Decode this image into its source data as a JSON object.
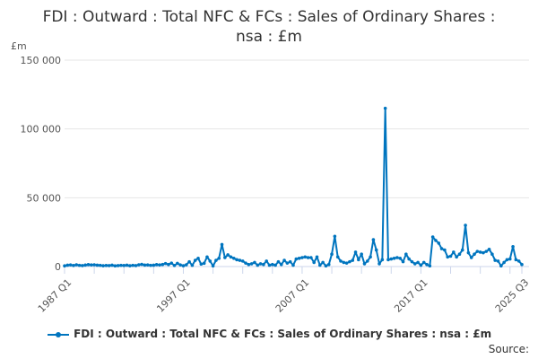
{
  "chart_data": {
    "type": "line",
    "title": "FDI : Outward : Total NFC & FCs : Sales of Ordinary Shares : nsa : £m",
    "ylabel": "£m",
    "xlabel": "",
    "ylim": [
      0,
      150000
    ],
    "yticks": [
      0,
      50000,
      100000,
      150000
    ],
    "ytick_labels": [
      "0",
      "50 000",
      "100 000",
      "150 000"
    ],
    "x_start": "1987 Q1",
    "x_end": "2025 Q3",
    "xtick_labels": [
      {
        "index": 0,
        "label": "1987 Q1"
      },
      {
        "index": 40,
        "label": "1997 Q1"
      },
      {
        "index": 80,
        "label": "2007 Q1"
      },
      {
        "index": 120,
        "label": "2017 Q1"
      },
      {
        "index": 154,
        "label": "2025 Q3"
      }
    ],
    "grid": "horizontal",
    "legend_position": "bottom",
    "color": "#0075BF",
    "series": [
      {
        "name": "FDI : Outward : Total NFC & FCs : Sales of Ordinary Shares : nsa : £m",
        "values": [
          500,
          1000,
          1200,
          800,
          1300,
          900,
          700,
          1100,
          1400,
          1200,
          1300,
          1000,
          900,
          600,
          800,
          700,
          1000,
          500,
          700,
          900,
          800,
          1000,
          600,
          900,
          700,
          1300,
          1600,
          1100,
          1200,
          900,
          1000,
          1400,
          1200,
          1500,
          2200,
          1500,
          2500,
          800,
          2300,
          1200,
          600,
          1300,
          3500,
          900,
          4500,
          6000,
          1800,
          2400,
          7000,
          4000,
          500,
          4500,
          6000,
          16000,
          6500,
          8500,
          7000,
          6000,
          5000,
          4500,
          4000,
          2500,
          1500,
          2000,
          3000,
          1000,
          2000,
          1500,
          4000,
          1000,
          1500,
          1000,
          3500,
          1500,
          4500,
          2500,
          3500,
          1000,
          5500,
          6000,
          6500,
          7000,
          6500,
          6500,
          3000,
          7000,
          1000,
          3000,
          500,
          1500,
          9000,
          22000,
          7000,
          4000,
          3000,
          2500,
          3500,
          4500,
          10500,
          5000,
          9000,
          2000,
          4000,
          7000,
          19500,
          12000,
          2000,
          5000,
          115000,
          5000,
          5500,
          6000,
          6500,
          6000,
          3500,
          9000,
          5500,
          3500,
          2000,
          3000,
          1000,
          3000,
          1500,
          500,
          21500,
          19000,
          17000,
          13000,
          12000,
          7000,
          7500,
          10500,
          7000,
          9000,
          12000,
          30000,
          10000,
          6500,
          9000,
          11000,
          10500,
          10000,
          11000,
          12500,
          9000,
          4500,
          4000,
          500,
          3000,
          5000,
          5500,
          14500,
          5000,
          4000,
          1500
        ]
      }
    ]
  },
  "legend_label": "FDI : Outward : Total NFC & FCs : Sales of Ordinary Shares : nsa : £m",
  "source_label": "Source:"
}
